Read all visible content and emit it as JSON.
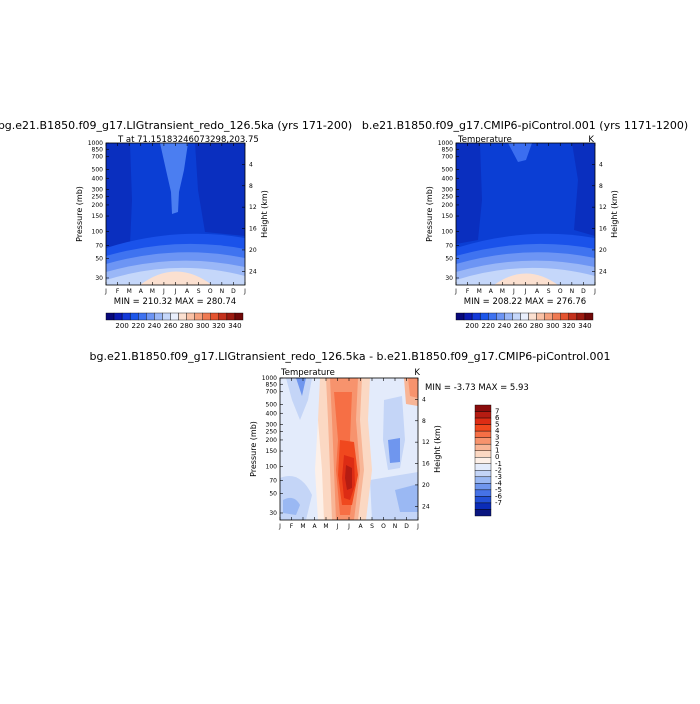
{
  "months": [
    "J",
    "F",
    "M",
    "A",
    "M",
    "J",
    "J",
    "A",
    "S",
    "O",
    "N",
    "D",
    "J"
  ],
  "pressure_ticks": [
    30,
    50,
    70,
    100,
    150,
    200,
    250,
    300,
    400,
    500,
    700,
    850,
    1000
  ],
  "height_ticks": [
    4,
    8,
    12,
    16,
    20,
    24
  ],
  "chart_data": [
    {
      "type": "heatmap",
      "title": "bg.e21.B1850.f09_g17.LIGtransient_redo_126.5ka (yrs 171-200)",
      "left_label": "T at 71.15183246073298,203.75",
      "right_label": "",
      "stats": "MIN = 210.32 MAX = 280.74",
      "min": 210.32,
      "max": 280.74,
      "xlabel": "",
      "ylabel": "Pressure (mb)",
      "ylabel_right": "Height (km)",
      "colorbar": {
        "labels": [
          "200",
          "220",
          "240",
          "260",
          "280",
          "300",
          "320",
          "340"
        ],
        "colors": [
          "#08087a",
          "#0b19b2",
          "#1238d8",
          "#1b56ea",
          "#3f73f0",
          "#6d95f4",
          "#9ab7f7",
          "#c5d7fa",
          "#e9effc",
          "#fbe0d0",
          "#f9c1a5",
          "#f5a07c",
          "#ef7a52",
          "#e4542f",
          "#c4311c",
          "#9c1a10",
          "#700808"
        ]
      }
    },
    {
      "type": "heatmap",
      "title": "b.e21.B1850.f09_g17.CMIP6-piControl.001 (yrs 1171-1200)",
      "left_label": "Temperature",
      "right_label": "K",
      "stats": "MIN = 208.22 MAX = 276.76",
      "min": 208.22,
      "max": 276.76,
      "xlabel": "",
      "ylabel": "Pressure (mb)",
      "ylabel_right": "Height (km)",
      "colorbar": {
        "labels": [
          "200",
          "220",
          "240",
          "260",
          "280",
          "300",
          "320",
          "340"
        ],
        "colors": [
          "#08087a",
          "#0b19b2",
          "#1238d8",
          "#1b56ea",
          "#3f73f0",
          "#6d95f4",
          "#9ab7f7",
          "#c5d7fa",
          "#e9effc",
          "#fbe0d0",
          "#f9c1a5",
          "#f5a07c",
          "#ef7a52",
          "#e4542f",
          "#c4311c",
          "#9c1a10",
          "#700808"
        ]
      }
    },
    {
      "type": "heatmap",
      "title": "bg.e21.B1850.f09_g17.LIGtransient_redo_126.5ka - b.e21.B1850.f09_g17.CMIP6-piControl.001",
      "left_label": "Temperature",
      "right_label": "K",
      "stats": "MIN = -3.73 MAX = 5.93",
      "min": -3.73,
      "max": 5.93,
      "xlabel": "",
      "ylabel": "Pressure (mb)",
      "ylabel_right": "Height (km)",
      "colorbar": {
        "labels": [
          "7",
          "6",
          "5",
          "4",
          "3",
          "2",
          "1",
          "0",
          "-1",
          "-2",
          "-3",
          "-4",
          "-5",
          "-6",
          "-7"
        ],
        "colors": [
          "#8a0c0c",
          "#b51c12",
          "#dd2c14",
          "#f0481e",
          "#f66f45",
          "#f7936d",
          "#f8b596",
          "#fbd8c3",
          "#fdf0e8",
          "#e3ebfb",
          "#c4d5f7",
          "#9ab8f3",
          "#6f96ee",
          "#4672e6",
          "#2350d6",
          "#0b2cb8",
          "#0a1680"
        ]
      }
    }
  ]
}
